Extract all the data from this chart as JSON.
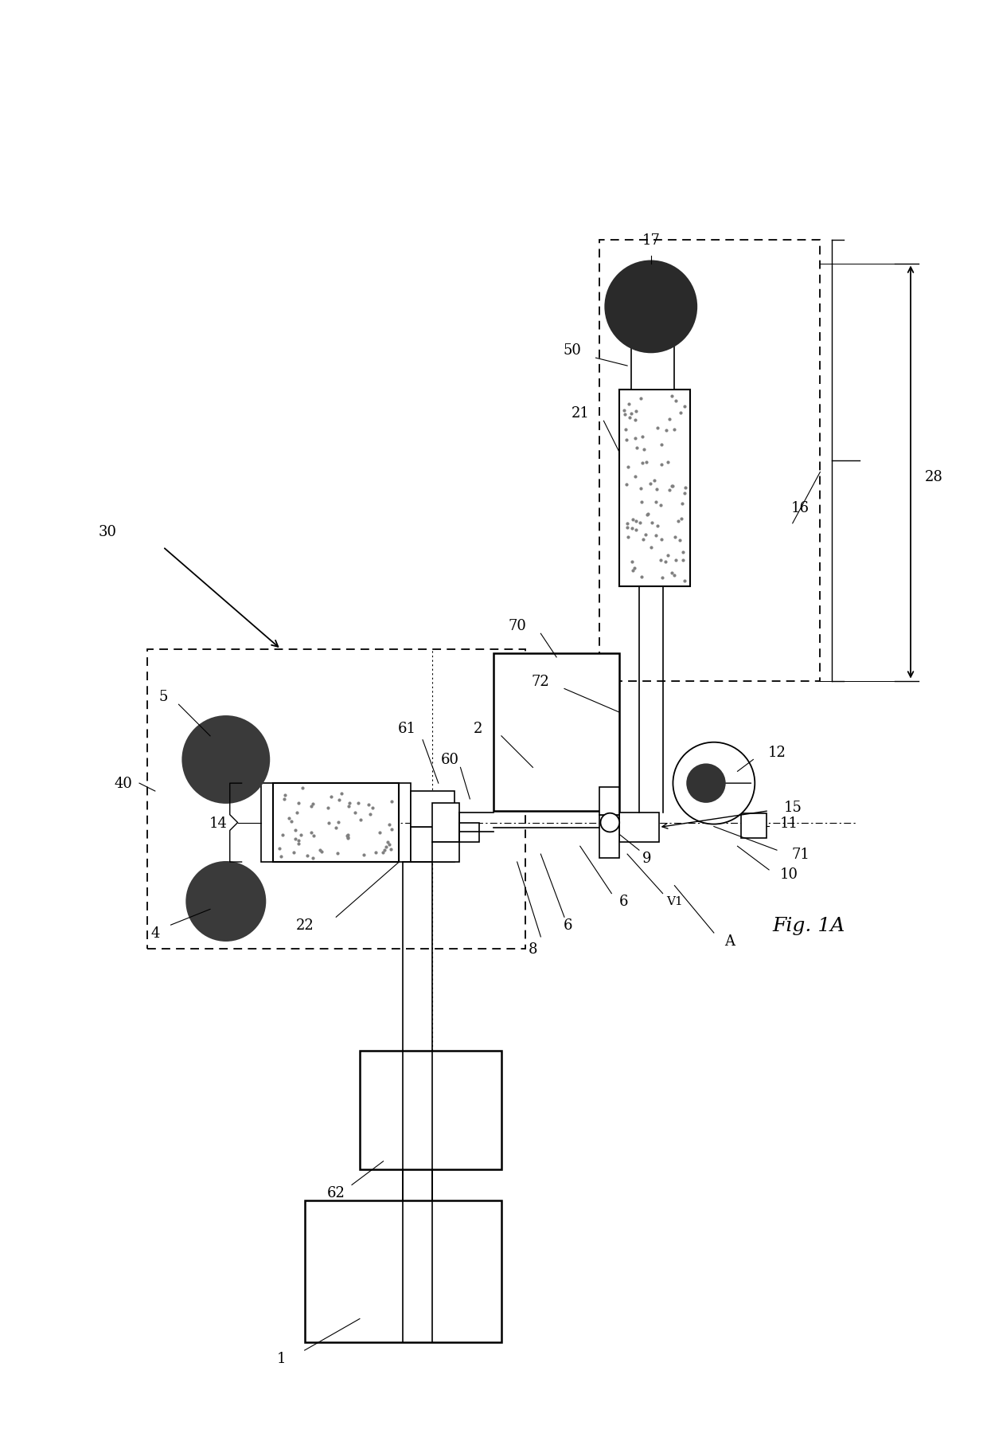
{
  "bg_color": "#ffffff",
  "fig_width": 12.4,
  "fig_height": 18.15,
  "title": "Fig. 1A"
}
